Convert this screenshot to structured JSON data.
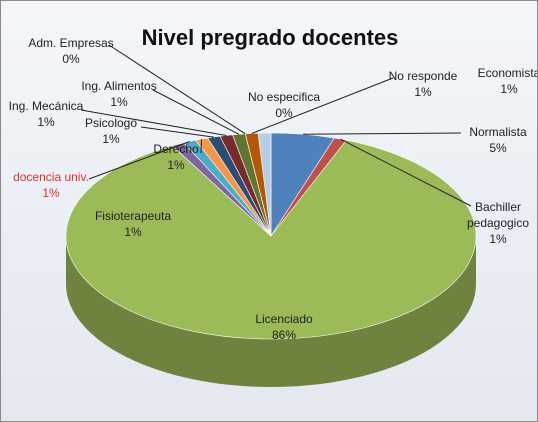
{
  "chart_data": {
    "type": "pie3d",
    "title": "Nivel pregrado docentes",
    "categories": [
      "Normalista",
      "Bachiller pedagogico",
      "Licenciado",
      "Fisioterapeuta",
      "docencia univ.",
      "Derecho",
      "Psicologo",
      "Ing. Mecánica",
      "Ing. Alimentos",
      "Adm. Empresas",
      "No especifica",
      "No responde",
      "Economista"
    ],
    "values": [
      5,
      1,
      86,
      1,
      1,
      1,
      1,
      1,
      1,
      0,
      0,
      1,
      1
    ],
    "value_labels": [
      "5%",
      "1%",
      "86%",
      "1%",
      "1%",
      "1%",
      "1%",
      "1%",
      "1%",
      "0%",
      "0%",
      "1%",
      "1%"
    ],
    "colors": [
      "#4f81bd",
      "#c0504d",
      "#9bbb59",
      "#8064a2",
      "#4bacc6",
      "#f79646",
      "#2c4d75",
      "#772c2a",
      "#5f7530",
      "#4d3b62",
      "#276a7c",
      "#b65708",
      "#b9cde5"
    ]
  }
}
